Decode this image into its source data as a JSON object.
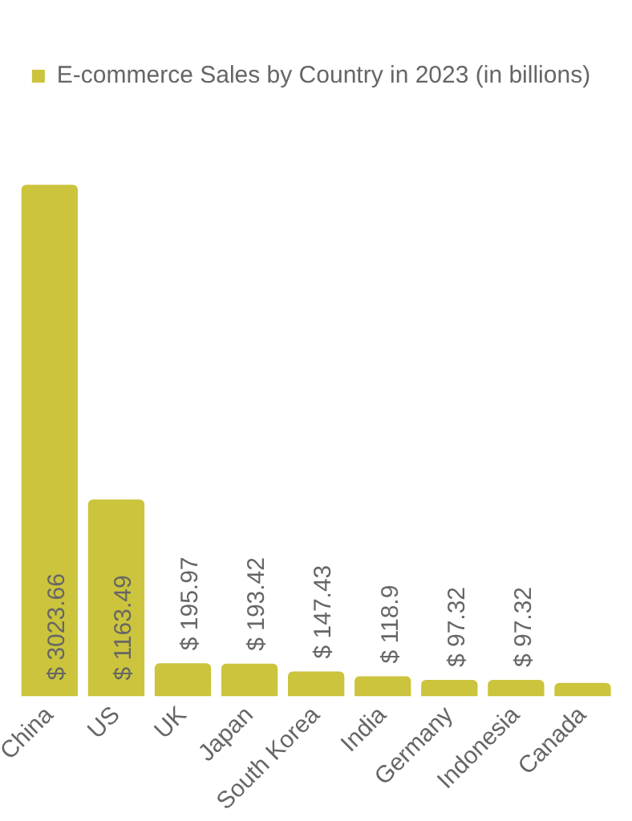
{
  "chart_data": {
    "type": "bar",
    "categories": [
      "China",
      "US",
      "UK",
      "Japan",
      "South Korea",
      "India",
      "Germany",
      "Indonesia",
      "Canada"
    ],
    "series": [
      {
        "name": "E-commerce Sales by Country in 2023 (in billions)",
        "color": "#cbc43c",
        "values": [
          3023.66,
          1163.49,
          195.97,
          193.42,
          147.43,
          118.9,
          97.32,
          97.32,
          80
        ],
        "value_labels": [
          "$ 3023.66",
          "$ 1163.49",
          "$ 195.97",
          "$ 193.42",
          "$ 147.43",
          "$ 118.9",
          "$ 97.32",
          "$ 97.32",
          null
        ]
      }
    ],
    "legend": "top",
    "grid": false
  }
}
